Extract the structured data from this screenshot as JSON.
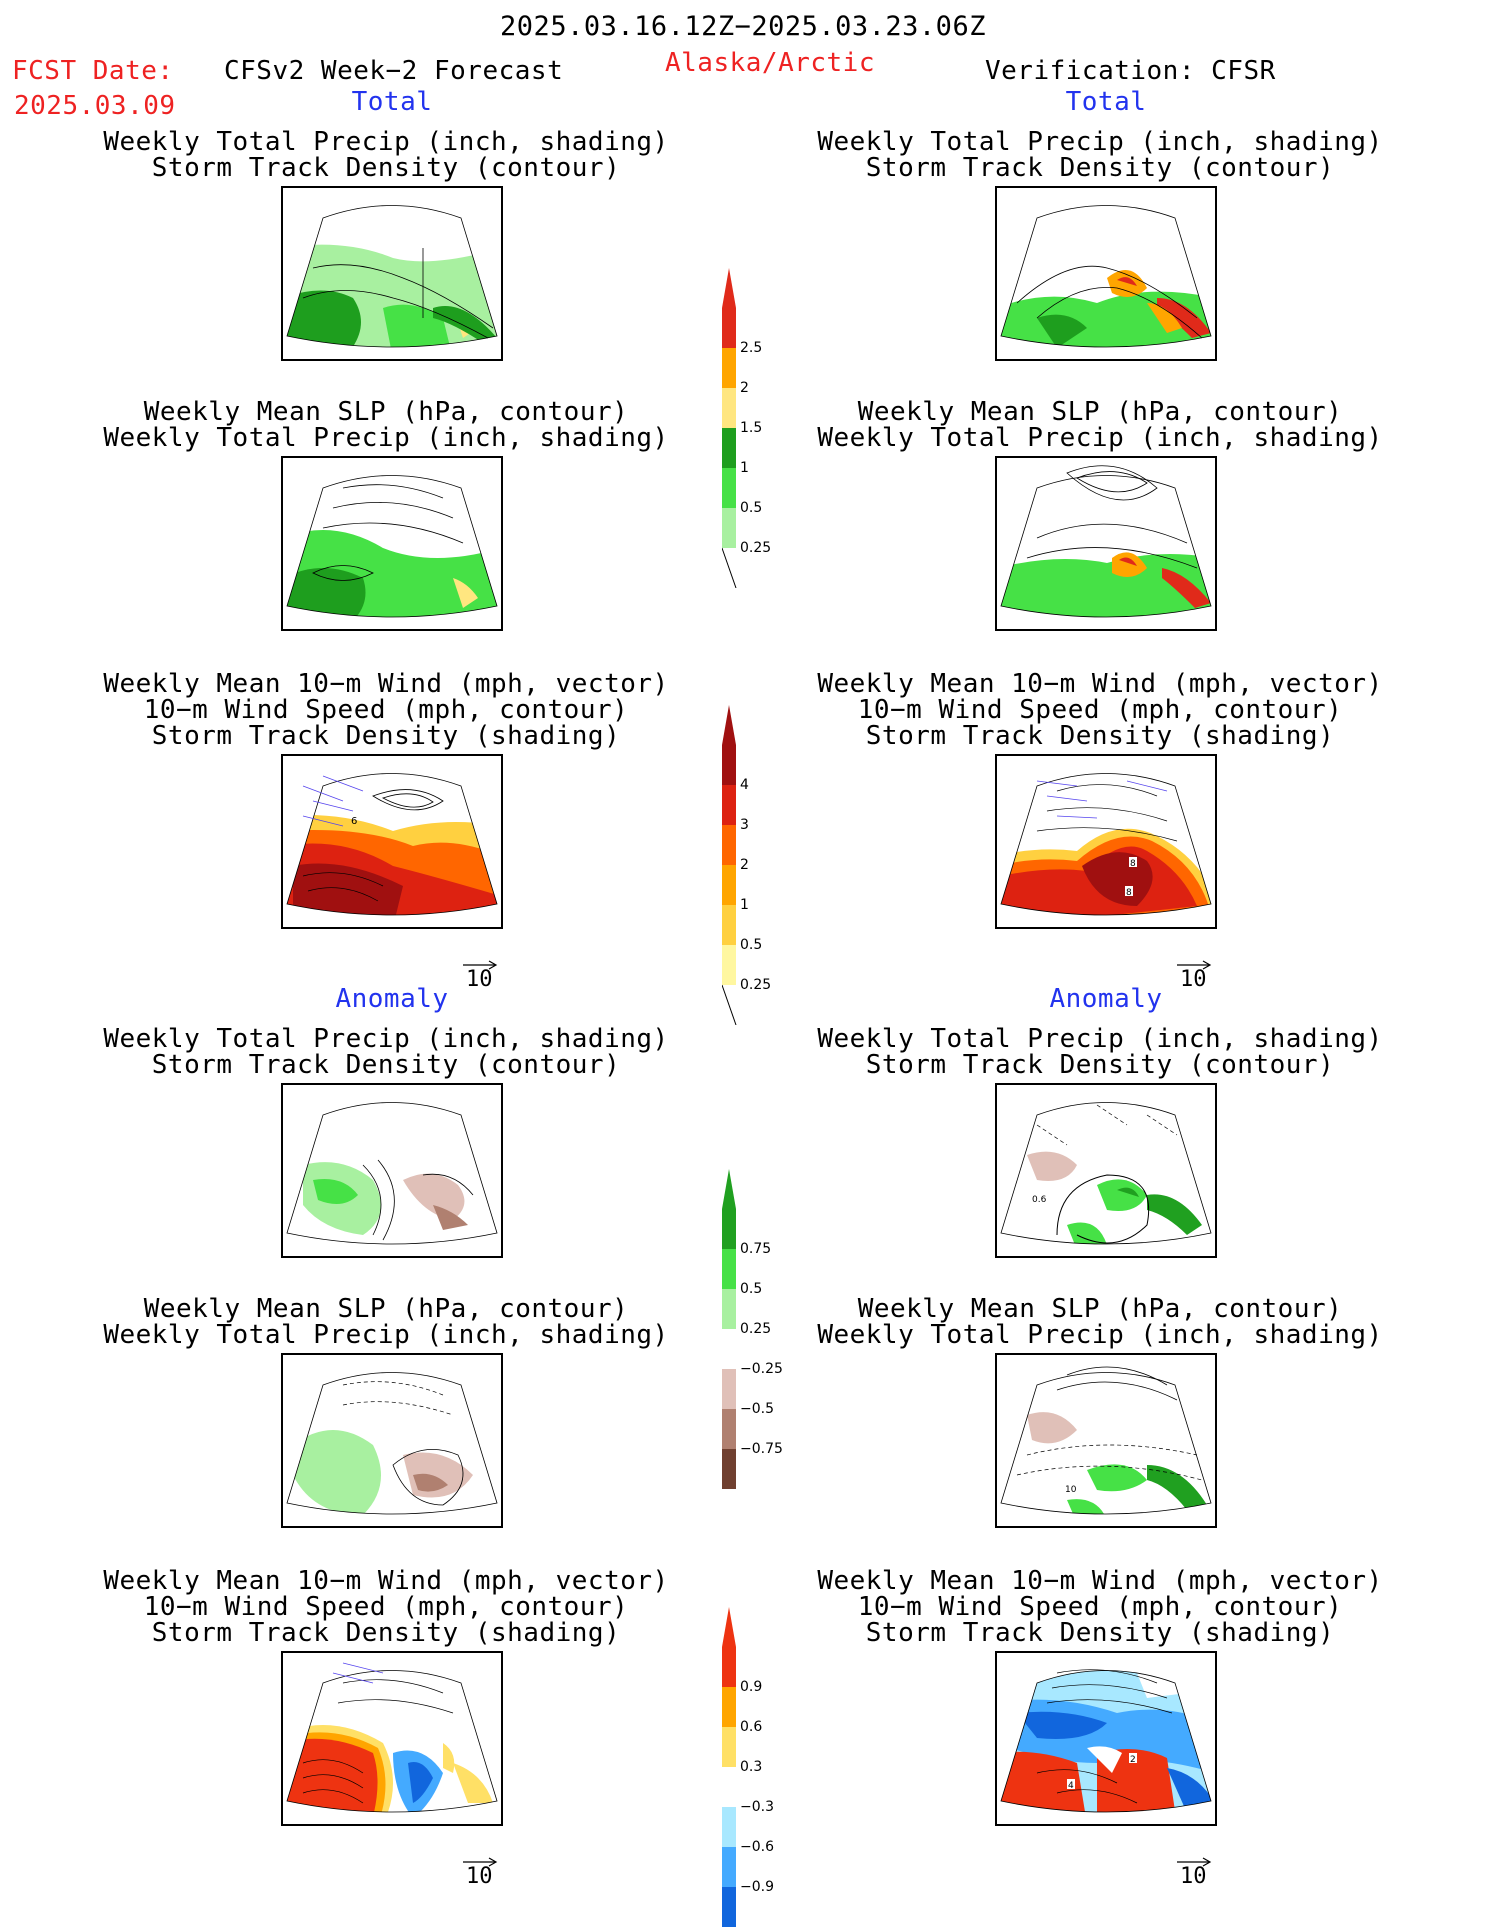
{
  "header": {
    "date_range": "2025.03.16.12Z−2025.03.23.06Z",
    "fcst_label": "FCST Date:",
    "fcst_date": "2025.03.09",
    "model_title": "CFSv2 Week−2 Forecast",
    "region": "Alaska/Arctic",
    "verification": "Verification: CFSR"
  },
  "sections": {
    "total": "Total",
    "anomaly": "Anomaly"
  },
  "panel_titles": {
    "precip_storm": [
      "Weekly Total Precip (inch, shading)",
      "Storm Track Density (contour)"
    ],
    "slp_precip": [
      "Weekly Mean SLP (hPa, contour)",
      "Weekly Total Precip (inch, shading)"
    ],
    "wind_storm": [
      "Weekly Mean 10−m Wind (mph, vector)",
      "10−m Wind Speed (mph, contour)",
      "Storm Track Density (shading)"
    ]
  },
  "vector_reference": "10",
  "colorbars": {
    "precip_total": {
      "labels": [
        "2.5",
        "2",
        "1.5",
        "1",
        "0.5",
        "0.25"
      ],
      "colors": [
        "#e02a1a",
        "#ffa500",
        "#ffe680",
        "#1e9e1e",
        "#46e146",
        "#a8f0a0"
      ]
    },
    "storm_total": {
      "labels": [
        "4",
        "3",
        "2",
        "1",
        "0.5",
        "0.25"
      ],
      "colors": [
        "#a01010",
        "#dd2211",
        "#ff6600",
        "#ffa500",
        "#ffd040",
        "#fff7a0"
      ]
    },
    "precip_anom": {
      "labels": [
        "0.75",
        "0.5",
        "0.25",
        "−0.25",
        "−0.5",
        "−0.75"
      ],
      "colors": [
        "#20a020",
        "#46e146",
        "#a8f0a0",
        "#ffffff",
        "#e0c0b8",
        "#b08070",
        "#704030"
      ]
    },
    "storm_anom": {
      "labels": [
        "0.9",
        "0.6",
        "0.3",
        "−0.3",
        "−0.6",
        "−0.9"
      ],
      "colors": [
        "#ee3311",
        "#ffa500",
        "#ffe066",
        "#ffffff",
        "#a8e8ff",
        "#44aaff",
        "#1166dd"
      ]
    }
  },
  "contour_labels": {
    "wind_fcst": "6",
    "wind_obs_a": "8",
    "wind_obs_b": "8",
    "precip_anom_obs": "0.6",
    "slp_anom_obs": "10",
    "wind_anom_obs_a": "2",
    "wind_anom_obs_b": "4"
  },
  "colors": {
    "red_text": "#ee2222",
    "blue_text": "#2233ee"
  }
}
